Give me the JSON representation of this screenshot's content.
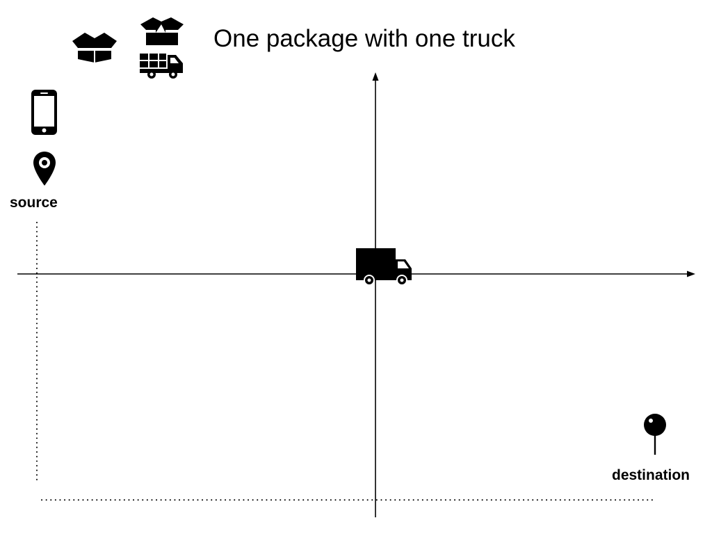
{
  "diagram": {
    "title": "One package with one truck",
    "source_label": "source",
    "destination_label": "destination",
    "colors": {
      "ink": "#000000",
      "background": "#ffffff"
    },
    "icons": [
      "open-box-icon",
      "open-box-stacked-icon",
      "delivery-truck-small-icon",
      "smartphone-icon",
      "source-location-pin-icon",
      "delivery-truck-icon",
      "destination-push-pin-icon"
    ]
  }
}
